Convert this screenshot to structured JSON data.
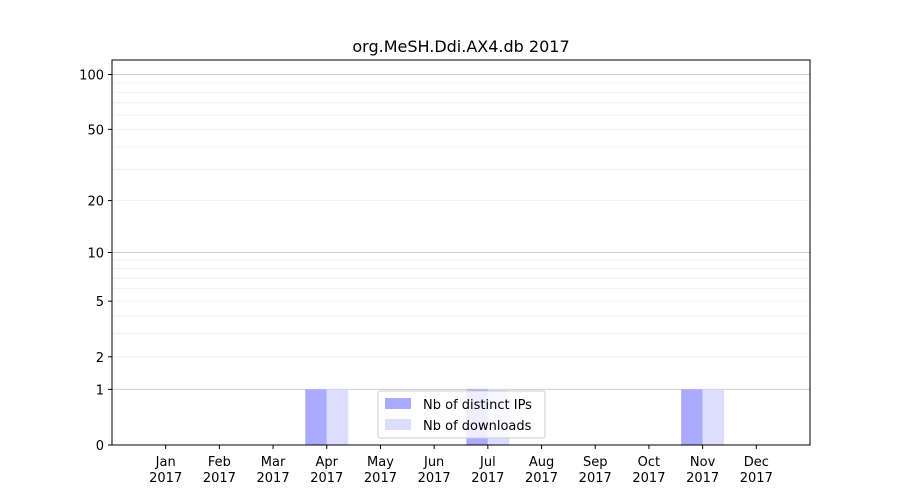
{
  "chart_data": {
    "type": "bar",
    "title": "org.MeSH.Ddi.AX4.db 2017",
    "xlabel": "",
    "ylabel": "",
    "yscale": "symlog",
    "ylim": [
      0,
      120
    ],
    "yticks": [
      0,
      1,
      2,
      5,
      10,
      20,
      50,
      100
    ],
    "grid": true,
    "legend_position": "bottom-center",
    "categories": [
      {
        "month": "Jan",
        "year": "2017"
      },
      {
        "month": "Feb",
        "year": "2017"
      },
      {
        "month": "Mar",
        "year": "2017"
      },
      {
        "month": "Apr",
        "year": "2017"
      },
      {
        "month": "May",
        "year": "2017"
      },
      {
        "month": "Jun",
        "year": "2017"
      },
      {
        "month": "Jul",
        "year": "2017"
      },
      {
        "month": "Aug",
        "year": "2017"
      },
      {
        "month": "Sep",
        "year": "2017"
      },
      {
        "month": "Oct",
        "year": "2017"
      },
      {
        "month": "Nov",
        "year": "2017"
      },
      {
        "month": "Dec",
        "year": "2017"
      }
    ],
    "series": [
      {
        "name": "Nb of distinct IPs",
        "color": "#aaaaff",
        "values": [
          0,
          0,
          0,
          1,
          0,
          0,
          1,
          0,
          0,
          0,
          1,
          0
        ]
      },
      {
        "name": "Nb of downloads",
        "color": "#ddddff",
        "values": [
          0,
          0,
          0,
          1,
          0,
          0,
          1,
          0,
          0,
          0,
          1,
          0
        ]
      }
    ]
  }
}
